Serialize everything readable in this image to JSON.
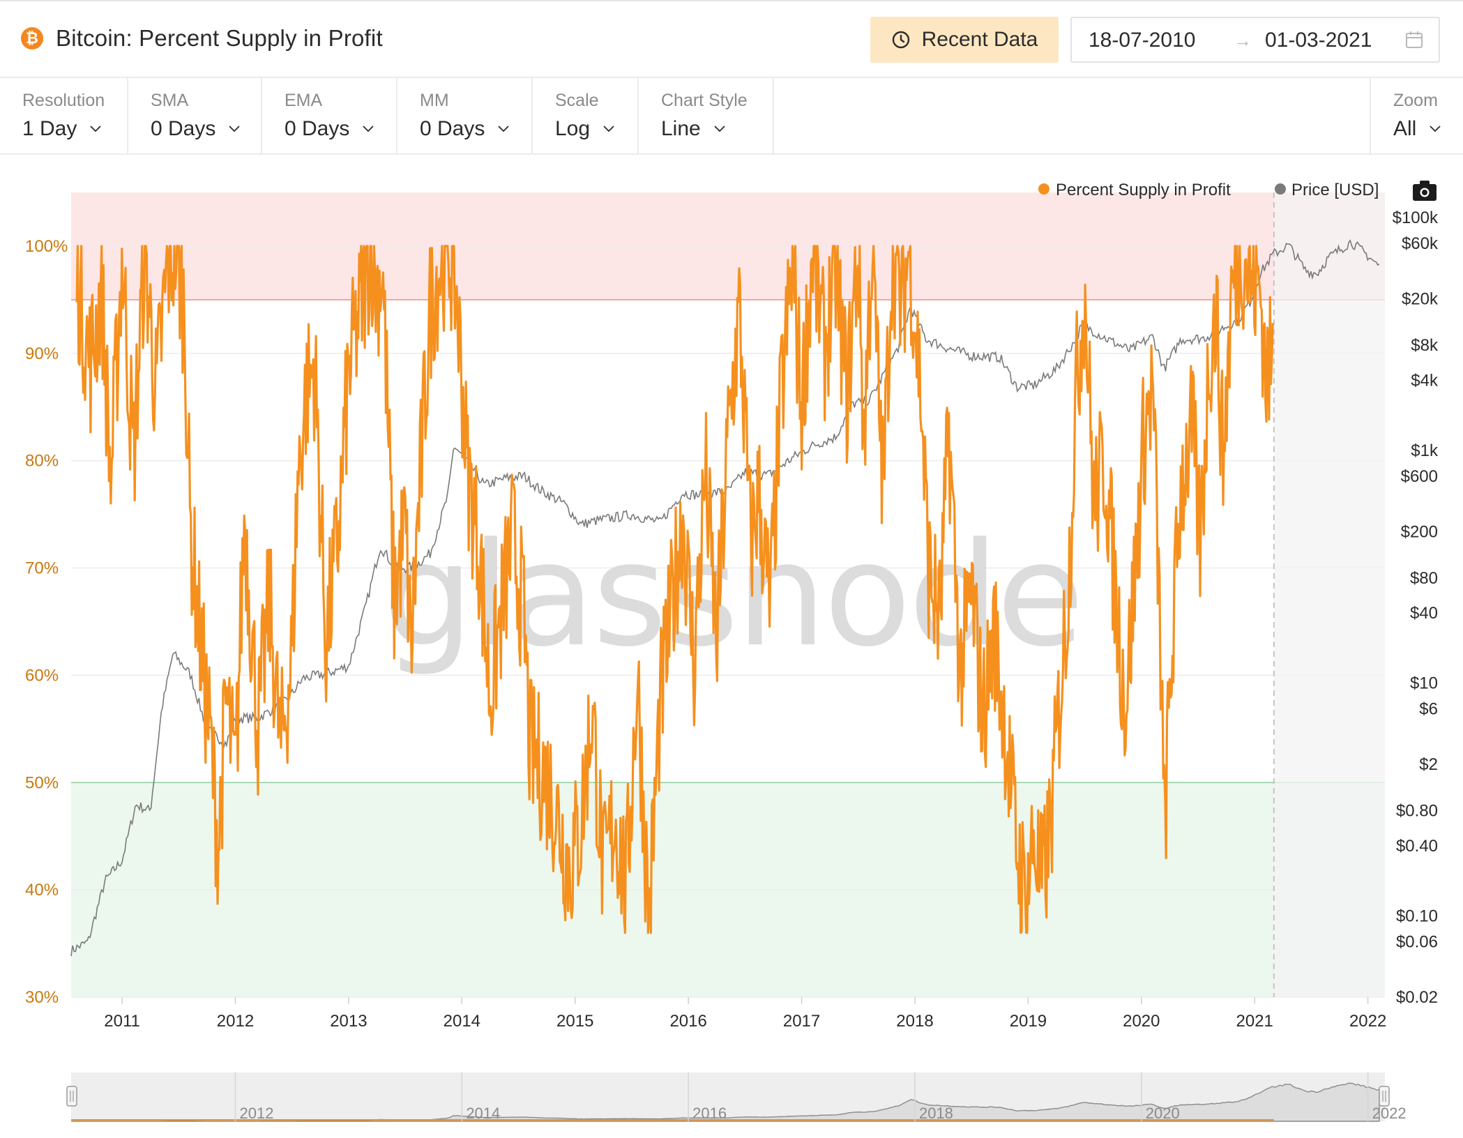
{
  "header": {
    "coin_symbol": "₿",
    "title": "Bitcoin: Percent Supply in Profit",
    "recent_button": "Recent Data",
    "date_from": "18-07-2010",
    "date_arrow": "→",
    "date_to": "01-03-2021"
  },
  "controls": [
    {
      "label": "Resolution",
      "value": "1 Day"
    },
    {
      "label": "SMA",
      "value": "0 Days"
    },
    {
      "label": "EMA",
      "value": "0 Days"
    },
    {
      "label": "MM",
      "value": "0 Days"
    },
    {
      "label": "Scale",
      "value": "Log"
    },
    {
      "label": "Chart Style",
      "value": "Line"
    }
  ],
  "zoom": {
    "label": "Zoom",
    "value": "All"
  },
  "watermark": "glassnode",
  "colors": {
    "profit_line": "#f5901e",
    "price_line": "#7a7a7a",
    "upper_band": "#fde6e6",
    "lower_band": "#ecf7ee",
    "upper_threshold": "#ef8a8a",
    "lower_threshold": "#8fcf9f"
  },
  "chart_data": {
    "type": "line",
    "legend_placement": "top-right",
    "series": [
      {
        "name": "Percent Supply in Profit",
        "axis": "left",
        "unit": "%",
        "points": [
          [
            2010.6,
            97
          ],
          [
            2010.72,
            89
          ],
          [
            2010.82,
            96
          ],
          [
            2010.9,
            78
          ],
          [
            2011.0,
            99
          ],
          [
            2011.1,
            80
          ],
          [
            2011.2,
            100
          ],
          [
            2011.3,
            86
          ],
          [
            2011.4,
            98
          ],
          [
            2011.47,
            100
          ],
          [
            2011.55,
            94
          ],
          [
            2011.6,
            74
          ],
          [
            2011.7,
            62
          ],
          [
            2011.78,
            54
          ],
          [
            2011.85,
            44
          ],
          [
            2011.92,
            58
          ],
          [
            2012.0,
            50
          ],
          [
            2012.08,
            75
          ],
          [
            2012.2,
            55
          ],
          [
            2012.3,
            67
          ],
          [
            2012.4,
            53
          ],
          [
            2012.5,
            62
          ],
          [
            2012.55,
            78
          ],
          [
            2012.62,
            86
          ],
          [
            2012.7,
            89
          ],
          [
            2012.8,
            63
          ],
          [
            2012.9,
            72
          ],
          [
            2013.0,
            88
          ],
          [
            2013.1,
            94
          ],
          [
            2013.2,
            100
          ],
          [
            2013.25,
            96
          ],
          [
            2013.3,
            98
          ],
          [
            2013.4,
            67
          ],
          [
            2013.5,
            74
          ],
          [
            2013.55,
            62
          ],
          [
            2013.62,
            76
          ],
          [
            2013.72,
            94
          ],
          [
            2013.8,
            98
          ],
          [
            2013.88,
            100
          ],
          [
            2013.95,
            96
          ],
          [
            2014.05,
            79
          ],
          [
            2014.15,
            72
          ],
          [
            2014.25,
            58
          ],
          [
            2014.35,
            66
          ],
          [
            2014.45,
            73
          ],
          [
            2014.55,
            65
          ],
          [
            2014.6,
            53
          ],
          [
            2014.72,
            51
          ],
          [
            2014.82,
            48
          ],
          [
            2014.95,
            42
          ],
          [
            2015.05,
            46
          ],
          [
            2015.15,
            57
          ],
          [
            2015.25,
            41
          ],
          [
            2015.35,
            47
          ],
          [
            2015.45,
            40
          ],
          [
            2015.55,
            60
          ],
          [
            2015.65,
            37
          ],
          [
            2015.75,
            57
          ],
          [
            2015.85,
            66
          ],
          [
            2015.95,
            75
          ],
          [
            2016.05,
            61
          ],
          [
            2016.15,
            79
          ],
          [
            2016.25,
            63
          ],
          [
            2016.35,
            82
          ],
          [
            2016.45,
            94
          ],
          [
            2016.55,
            72
          ],
          [
            2016.62,
            77
          ],
          [
            2016.72,
            66
          ],
          [
            2016.82,
            86
          ],
          [
            2016.92,
            98
          ],
          [
            2017.0,
            85
          ],
          [
            2017.1,
            100
          ],
          [
            2017.2,
            90
          ],
          [
            2017.3,
            98
          ],
          [
            2017.4,
            86
          ],
          [
            2017.5,
            100
          ],
          [
            2017.55,
            82
          ],
          [
            2017.62,
            100
          ],
          [
            2017.72,
            77
          ],
          [
            2017.8,
            100
          ],
          [
            2017.88,
            94
          ],
          [
            2017.95,
            100
          ],
          [
            2018.05,
            87
          ],
          [
            2018.12,
            70
          ],
          [
            2018.22,
            65
          ],
          [
            2018.3,
            83
          ],
          [
            2018.4,
            60
          ],
          [
            2018.5,
            68
          ],
          [
            2018.6,
            56
          ],
          [
            2018.7,
            64
          ],
          [
            2018.8,
            55
          ],
          [
            2018.9,
            44
          ],
          [
            2018.98,
            39
          ],
          [
            2019.05,
            45
          ],
          [
            2019.12,
            40
          ],
          [
            2019.2,
            46
          ],
          [
            2019.28,
            58
          ],
          [
            2019.36,
            69
          ],
          [
            2019.42,
            86
          ],
          [
            2019.5,
            96
          ],
          [
            2019.58,
            76
          ],
          [
            2019.68,
            80
          ],
          [
            2019.76,
            69
          ],
          [
            2019.86,
            57
          ],
          [
            2019.94,
            69
          ],
          [
            2020.02,
            82
          ],
          [
            2020.1,
            87
          ],
          [
            2020.18,
            58
          ],
          [
            2020.2,
            45
          ],
          [
            2020.27,
            62
          ],
          [
            2020.35,
            78
          ],
          [
            2020.45,
            83
          ],
          [
            2020.52,
            72
          ],
          [
            2020.6,
            90
          ],
          [
            2020.66,
            94
          ],
          [
            2020.72,
            80
          ],
          [
            2020.8,
            96
          ],
          [
            2020.88,
            100
          ],
          [
            2020.96,
            97
          ],
          [
            2021.05,
            96
          ],
          [
            2021.1,
            88
          ],
          [
            2021.16,
            89
          ]
        ]
      },
      {
        "name": "Price [USD]",
        "axis": "right",
        "unit": "USD",
        "scale": "log",
        "points": [
          [
            2010.55,
            0.05
          ],
          [
            2010.7,
            0.06
          ],
          [
            2010.85,
            0.2
          ],
          [
            2011.0,
            0.3
          ],
          [
            2011.12,
            0.9
          ],
          [
            2011.25,
            0.8
          ],
          [
            2011.35,
            6
          ],
          [
            2011.45,
            18
          ],
          [
            2011.6,
            12
          ],
          [
            2011.75,
            4
          ],
          [
            2011.92,
            3
          ],
          [
            2012.0,
            5
          ],
          [
            2012.2,
            5
          ],
          [
            2012.45,
            7
          ],
          [
            2012.6,
            11
          ],
          [
            2012.8,
            12
          ],
          [
            2013.0,
            14
          ],
          [
            2013.15,
            45
          ],
          [
            2013.28,
            150
          ],
          [
            2013.42,
            95
          ],
          [
            2013.58,
            100
          ],
          [
            2013.72,
            130
          ],
          [
            2013.88,
            420
          ],
          [
            2013.93,
            1100
          ],
          [
            2014.05,
            800
          ],
          [
            2014.2,
            500
          ],
          [
            2014.4,
            580
          ],
          [
            2014.55,
            600
          ],
          [
            2014.7,
            450
          ],
          [
            2014.9,
            350
          ],
          [
            2015.05,
            230
          ],
          [
            2015.2,
            250
          ],
          [
            2015.5,
            280
          ],
          [
            2015.75,
            240
          ],
          [
            2015.95,
            430
          ],
          [
            2016.1,
            410
          ],
          [
            2016.35,
            450
          ],
          [
            2016.5,
            650
          ],
          [
            2016.7,
            610
          ],
          [
            2016.95,
            900
          ],
          [
            2017.1,
            1100
          ],
          [
            2017.3,
            1300
          ],
          [
            2017.45,
            2500
          ],
          [
            2017.6,
            2700
          ],
          [
            2017.75,
            5000
          ],
          [
            2017.85,
            7500
          ],
          [
            2017.96,
            17000
          ],
          [
            2018.1,
            9000
          ],
          [
            2018.3,
            7500
          ],
          [
            2018.5,
            6500
          ],
          [
            2018.75,
            6300
          ],
          [
            2018.9,
            3500
          ],
          [
            2019.05,
            3600
          ],
          [
            2019.25,
            5000
          ],
          [
            2019.42,
            9000
          ],
          [
            2019.48,
            12000
          ],
          [
            2019.7,
            9000
          ],
          [
            2019.9,
            7200
          ],
          [
            2020.1,
            9500
          ],
          [
            2020.2,
            5000
          ],
          [
            2020.35,
            9000
          ],
          [
            2020.55,
            9200
          ],
          [
            2020.7,
            11000
          ],
          [
            2020.85,
            13000
          ],
          [
            2020.96,
            19000
          ],
          [
            2021.05,
            33000
          ],
          [
            2021.16,
            48000
          ],
          [
            2021.3,
            58000
          ],
          [
            2021.45,
            35000
          ],
          [
            2021.55,
            33000
          ],
          [
            2021.65,
            45000
          ],
          [
            2021.85,
            62000
          ],
          [
            2022.0,
            47000
          ],
          [
            2022.1,
            38000
          ]
        ]
      }
    ],
    "y_left": {
      "ticks": [
        "30%",
        "40%",
        "50%",
        "60%",
        "70%",
        "80%",
        "90%",
        "100%"
      ],
      "range": [
        30,
        100
      ]
    },
    "y_right": {
      "ticks": [
        "$100k",
        "$60k",
        "$20k",
        "$8k",
        "$4k",
        "$1k",
        "$600",
        "$200",
        "$80",
        "$40",
        "$10",
        "$6",
        "$2",
        "$0.80",
        "$0.40",
        "$0.10",
        "$0.06",
        "$0.02"
      ]
    },
    "x_ticks": [
      "2011",
      "2012",
      "2013",
      "2014",
      "2015",
      "2016",
      "2017",
      "2018",
      "2019",
      "2020",
      "2021",
      "2022"
    ],
    "upper_threshold": 95,
    "lower_threshold": 50,
    "navigator_labels": [
      "2012",
      "2014",
      "2016",
      "2018",
      "2020",
      "2022"
    ]
  }
}
